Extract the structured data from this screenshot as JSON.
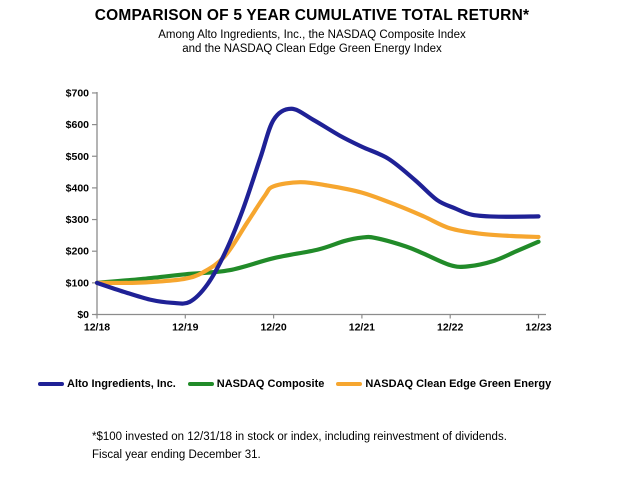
{
  "header": {
    "title": "COMPARISON OF 5 YEAR CUMULATIVE TOTAL RETURN*",
    "subtitle1": "Among Alto Ingredients, Inc., the NASDAQ Composite Index",
    "subtitle2": "and the NASDAQ Clean Edge Green Energy Index"
  },
  "footnote": {
    "line1": "*$100 invested on 12/31/18 in stock or index, including reinvestment of dividends.",
    "line2": "Fiscal year ending December 31."
  },
  "chart_data": {
    "type": "line",
    "title": "COMPARISON OF 5 YEAR CUMULATIVE TOTAL RETURN*",
    "categories": [
      "12/18",
      "12/19",
      "12/20",
      "12/21",
      "12/22",
      "12/23"
    ],
    "y_ticks": [
      "$0",
      "$100",
      "$200",
      "$300",
      "$400",
      "$500",
      "$600",
      "$700"
    ],
    "ylim": [
      0,
      700
    ],
    "grid": false,
    "legend_position": "bottom",
    "axis_color": "#8c8c8c",
    "line_style": "smoothed",
    "series": [
      {
        "name": "NASDAQ Composite",
        "color": "#218b29",
        "values": [
          100,
          127,
          178,
          243,
          156,
          230
        ],
        "smooth": [
          [
            0,
            100
          ],
          [
            0.5,
            112
          ],
          [
            1.0,
            127
          ],
          [
            1.5,
            140
          ],
          [
            2.0,
            178
          ],
          [
            2.5,
            205
          ],
          [
            2.8,
            232
          ],
          [
            3.0,
            243
          ],
          [
            3.15,
            242
          ],
          [
            3.5,
            215
          ],
          [
            3.7,
            192
          ],
          [
            4.0,
            156
          ],
          [
            4.2,
            152
          ],
          [
            4.5,
            170
          ],
          [
            4.75,
            200
          ],
          [
            5.0,
            230
          ]
        ]
      },
      {
        "name": "NASDAQ Clean Edge Green Energy",
        "color": "#f6a62f",
        "values": [
          100,
          113,
          405,
          385,
          272,
          245
        ],
        "smooth": [
          [
            0,
            100
          ],
          [
            0.4,
            100
          ],
          [
            0.7,
            104
          ],
          [
            1.0,
            113
          ],
          [
            1.2,
            133
          ],
          [
            1.45,
            185
          ],
          [
            1.7,
            290
          ],
          [
            1.9,
            375
          ],
          [
            2.0,
            405
          ],
          [
            2.3,
            418
          ],
          [
            2.6,
            408
          ],
          [
            3.0,
            385
          ],
          [
            3.4,
            345
          ],
          [
            3.7,
            310
          ],
          [
            4.0,
            272
          ],
          [
            4.35,
            255
          ],
          [
            4.7,
            248
          ],
          [
            5.0,
            245
          ]
        ]
      },
      {
        "name": "Alto Ingredients, Inc.",
        "color": "#1f2196",
        "values": [
          100,
          40,
          615,
          530,
          340,
          310
        ],
        "smooth": [
          [
            0,
            100
          ],
          [
            0.3,
            72
          ],
          [
            0.6,
            47
          ],
          [
            0.85,
            37
          ],
          [
            1.05,
            40
          ],
          [
            1.25,
            95
          ],
          [
            1.45,
            195
          ],
          [
            1.65,
            330
          ],
          [
            1.85,
            495
          ],
          [
            2.0,
            615
          ],
          [
            2.2,
            650
          ],
          [
            2.45,
            615
          ],
          [
            2.75,
            565
          ],
          [
            3.0,
            530
          ],
          [
            3.3,
            492
          ],
          [
            3.6,
            425
          ],
          [
            3.85,
            362
          ],
          [
            4.05,
            336
          ],
          [
            4.25,
            315
          ],
          [
            4.55,
            309
          ],
          [
            5.0,
            310
          ]
        ]
      }
    ],
    "legend_order": [
      2,
      0,
      1
    ]
  }
}
